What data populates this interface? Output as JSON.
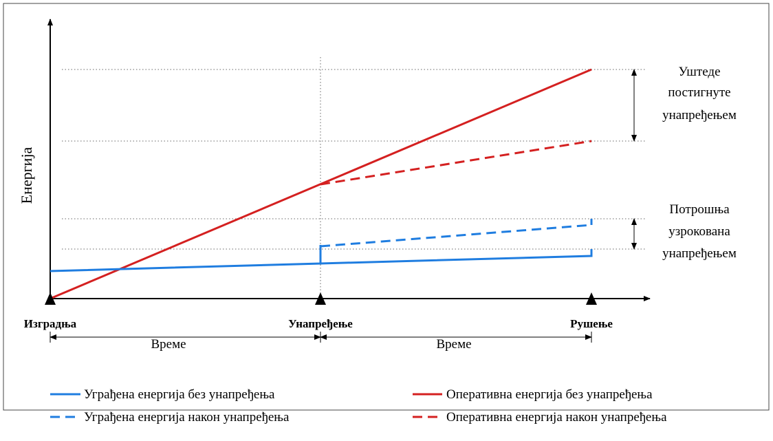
{
  "y_axis_label": "Енергија",
  "milestones": [
    "Изградња",
    "Унапређење",
    "Рушење"
  ],
  "time_labels": [
    "Време",
    "Време"
  ],
  "annotations": {
    "savings": [
      "Уштеде",
      "постигнуте",
      "унапређењем"
    ],
    "consumption": [
      "Потрошња",
      "узрокована",
      "унапређењем"
    ]
  },
  "legend": [
    "Уграђена енергија без унапређења",
    "Оперативна енергија без унапређења",
    "Уграђена енергија након унапређења",
    "Оперативна енергија након унапређења"
  ]
}
